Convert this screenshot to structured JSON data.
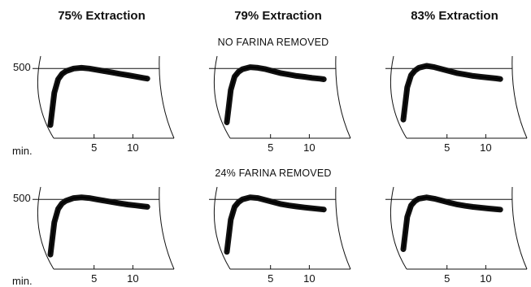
{
  "column_titles": [
    "75% Extraction",
    "79% Extraction",
    "83% Extraction"
  ],
  "row_titles": [
    "NO FARINA REMOVED",
    "24% FARINA REMOVED"
  ],
  "y_tick_label": "500",
  "x_axis_unit": "min.",
  "chart_data": {
    "type": "line",
    "title": "",
    "x_ticks": [
      "5",
      "10"
    ],
    "y_ticks": [
      "500"
    ],
    "xlim": [
      0,
      13
    ],
    "ylim": [
      0,
      550
    ],
    "panels": [
      {
        "row": "NO FARINA REMOVED",
        "column": "75% Extraction",
        "x": [
          0,
          0.5,
          1,
          1.5,
          2,
          3,
          4,
          5,
          6,
          7,
          8,
          9,
          10,
          11,
          12,
          12.5
        ],
        "y": [
          80,
          320,
          420,
          460,
          480,
          500,
          505,
          500,
          490,
          480,
          470,
          460,
          450,
          440,
          430,
          425
        ]
      },
      {
        "row": "NO FARINA REMOVED",
        "column": "79% Extraction",
        "x": [
          0,
          0.5,
          1,
          1.5,
          2,
          3,
          4,
          5,
          6,
          7,
          8,
          9,
          10,
          11,
          12,
          12.5
        ],
        "y": [
          100,
          340,
          440,
          475,
          495,
          510,
          505,
          495,
          480,
          465,
          455,
          445,
          438,
          430,
          424,
          420
        ]
      },
      {
        "row": "NO FARINA REMOVED",
        "column": "83% Extraction",
        "x": [
          0,
          0.5,
          1,
          1.5,
          2,
          3,
          4,
          5,
          6,
          7,
          8,
          9,
          10,
          11,
          12,
          12.5
        ],
        "y": [
          120,
          360,
          450,
          485,
          505,
          520,
          510,
          495,
          480,
          465,
          455,
          445,
          438,
          432,
          426,
          422
        ]
      },
      {
        "row": "24% FARINA REMOVED",
        "column": "75% Extraction",
        "x": [
          0,
          0.5,
          1,
          1.5,
          2,
          3,
          4,
          5,
          6,
          7,
          8,
          9,
          10,
          11,
          12,
          12.5
        ],
        "y": [
          90,
          330,
          430,
          470,
          490,
          510,
          515,
          510,
          500,
          490,
          480,
          470,
          462,
          455,
          448,
          445
        ]
      },
      {
        "row": "24% FARINA REMOVED",
        "column": "79% Extraction",
        "x": [
          0,
          0.5,
          1,
          1.5,
          2,
          3,
          4,
          5,
          6,
          7,
          8,
          9,
          10,
          11,
          12,
          12.5
        ],
        "y": [
          110,
          350,
          445,
          480,
          500,
          515,
          510,
          495,
          480,
          465,
          455,
          447,
          440,
          434,
          428,
          425
        ]
      },
      {
        "row": "24% FARINA REMOVED",
        "column": "83% Extraction",
        "x": [
          0,
          0.5,
          1,
          1.5,
          2,
          3,
          4,
          5,
          6,
          7,
          8,
          9,
          10,
          11,
          12,
          12.5
        ],
        "y": [
          130,
          370,
          455,
          488,
          505,
          515,
          505,
          490,
          475,
          462,
          452,
          444,
          438,
          432,
          427,
          424
        ]
      }
    ]
  }
}
